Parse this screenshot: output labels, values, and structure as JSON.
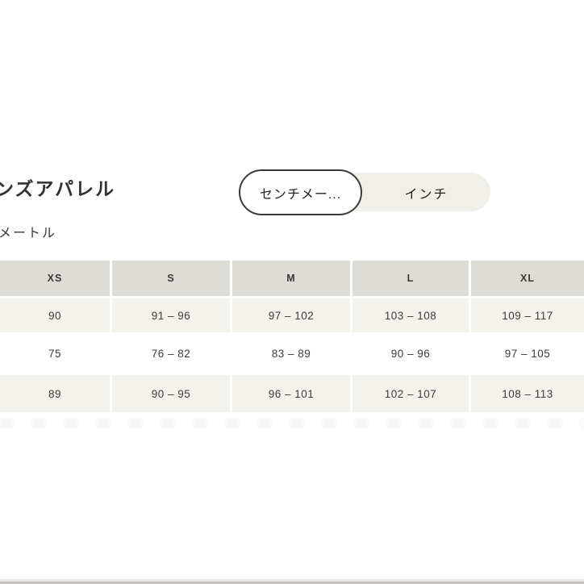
{
  "page": {
    "title": "ンズアパレル",
    "unit_label": "メートル"
  },
  "unit_toggle": {
    "centimeters_label": "センチメー...",
    "inches_label": "インチ",
    "selected": "centimeters"
  },
  "size_table": {
    "columns": [
      "XS",
      "S",
      "M",
      "L",
      "XL"
    ],
    "rows": [
      [
        "90",
        "91 – 96",
        "97 – 102",
        "103 – 108",
        "109 – 117"
      ],
      [
        "75",
        "76 – 82",
        "83 – 89",
        "90 – 96",
        "97 – 105"
      ],
      [
        "89",
        "90 – 95",
        "96 – 101",
        "102 – 107",
        "108 – 113"
      ]
    ]
  },
  "colors": {
    "header_bg": "#dedcd7",
    "alt_row_bg": "#f4f2ed",
    "toggle_bg": "#f1efe9",
    "pill_border": "#3b3a38",
    "text": "#333230"
  }
}
